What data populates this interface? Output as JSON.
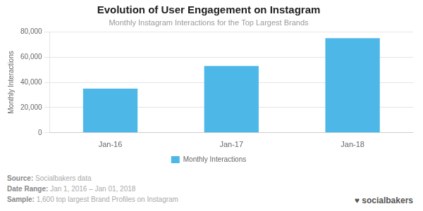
{
  "chart_data": {
    "type": "bar",
    "title": "Evolution of User Engagement on Instagram",
    "subtitle": "Monthly Instagram Interactions for the Top Largest Brands",
    "categories": [
      "Jan-16",
      "Jan-17",
      "Jan-18"
    ],
    "series": [
      {
        "name": "Monthly Interactions",
        "color": "#4DB8E8",
        "values": [
          35000,
          53000,
          75000
        ]
      }
    ],
    "ylabel": "Monthly Interactions",
    "ylim": [
      0,
      80000
    ],
    "yticks": [
      0,
      {
        "value": 20000,
        "label": "20,000"
      },
      {
        "value": 40000,
        "label": "40,000"
      },
      {
        "value": 60000,
        "label": "60,000"
      },
      {
        "value": 80000,
        "label": "80,000"
      }
    ],
    "grid": true,
    "legend": "bottom",
    "annotations": [
      "Source: Socialbakers data",
      "Date Range: Jan 1, 2016 – Jan 01, 2018",
      "Sample: 1,600 top largest Brand Profiles on Instagram",
      "♥ socialbakers"
    ]
  }
}
